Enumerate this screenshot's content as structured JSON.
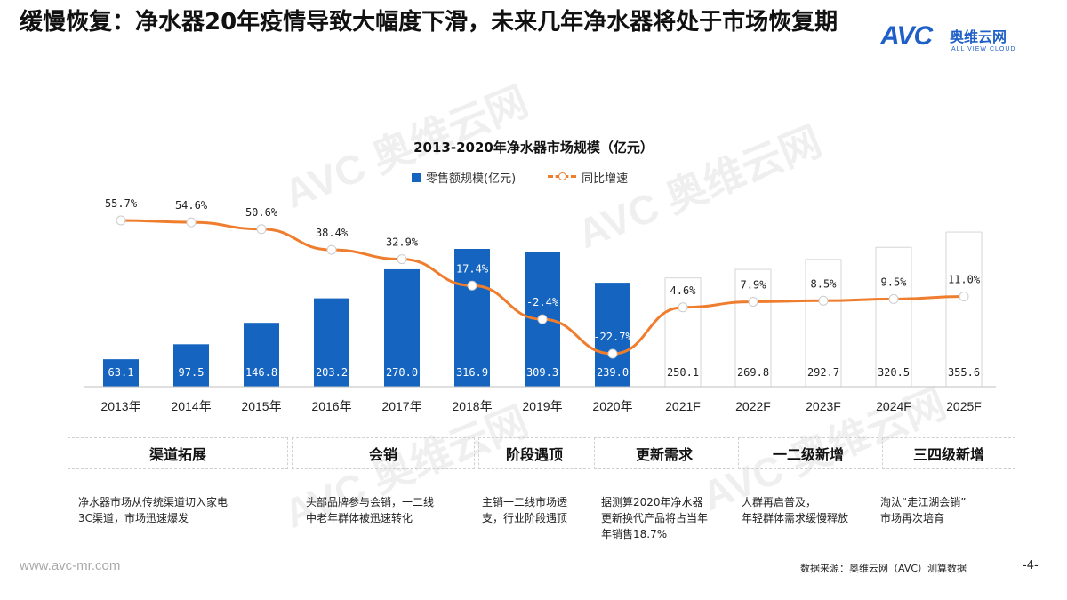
{
  "header": {
    "title": "缓慢恢复：净水器20年疫情导致大幅度下滑，未来几年净水器将处于市场恢复期",
    "logo_mark": "AVC",
    "logo_cn": "奥维云网",
    "logo_en": "ALL VIEW CLOUD"
  },
  "chart_data": {
    "type": "bar",
    "title": "2013-2020年净水器市场规模（亿元）",
    "categories": [
      "2013年",
      "2014年",
      "2015年",
      "2016年",
      "2017年",
      "2018年",
      "2019年",
      "2020年",
      "2021F",
      "2022F",
      "2023F",
      "2024F",
      "2025F"
    ],
    "series": [
      {
        "name": "零售额规模(亿元)",
        "type": "bar",
        "values": [
          63.1,
          97.5,
          146.8,
          203.2,
          270.0,
          316.9,
          309.3,
          239.0,
          250.1,
          269.8,
          292.7,
          320.5,
          355.6
        ],
        "value_labels": [
          "63.1",
          "97.5",
          "146.8",
          "203.2",
          "270.0",
          "316.9",
          "309.3",
          "239.0",
          "250.1",
          "269.8",
          "292.7",
          "320.5",
          "355.6"
        ],
        "forecast_from_index": 8,
        "color": "#1565c0"
      },
      {
        "name": "同比增速",
        "type": "line",
        "values": [
          55.7,
          54.6,
          50.6,
          38.4,
          32.9,
          17.4,
          -2.4,
          -22.7,
          4.6,
          7.9,
          8.5,
          9.5,
          11.0
        ],
        "value_labels": [
          "55.7%",
          "54.6%",
          "50.6%",
          "38.4%",
          "32.9%",
          "17.4%",
          "-2.4%",
          "-22.7%",
          "4.6%",
          "7.9%",
          "8.5%",
          "9.5%",
          "11.0%"
        ],
        "color": "#ef7d2e"
      }
    ],
    "legend_position": "top",
    "grid": false
  },
  "categories": [
    {
      "title": "渠道拓展",
      "desc": [
        "净水器市场从传统渠道切入家电",
        "3C渠道，市场迅速爆发"
      ]
    },
    {
      "title": "会销",
      "desc": [
        "头部品牌参与会销，一二线",
        "中老年群体被迅速转化"
      ]
    },
    {
      "title": "阶段遇顶",
      "desc": [
        "主销一二线市场透",
        "支，行业阶段遇顶"
      ]
    },
    {
      "title": "更新需求",
      "desc": [
        "据测算2020年净水器",
        "更新换代产品将占当年",
        "年销售18.7%"
      ]
    },
    {
      "title": "一二级新增",
      "desc": [
        "人群再启普及，",
        "年轻群体需求缓慢释放"
      ]
    },
    {
      "title": "三四级新增",
      "desc": [
        "淘汰“走江湖会销”",
        "市场再次培育"
      ]
    }
  ],
  "footer": {
    "url": "www.avc-mr.com",
    "source": "数据来源：奥维云网（AVC）测算数据",
    "page": "-4-"
  },
  "colors": {
    "bar": "#1565c0",
    "line": "#ef7d2e",
    "forecast_border": "#d6d6d6"
  }
}
